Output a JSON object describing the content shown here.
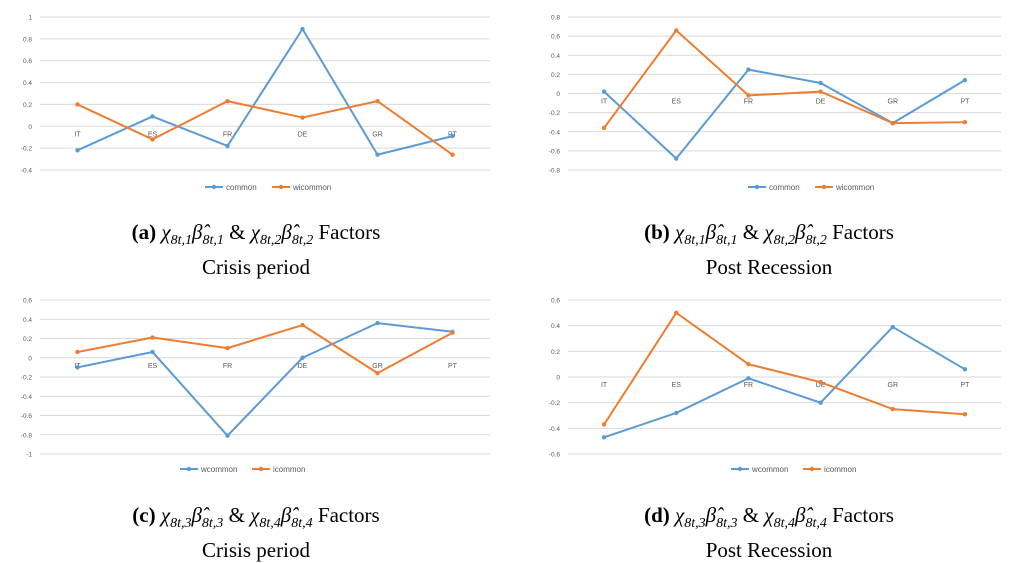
{
  "colors": {
    "series1": "#5b9bd5",
    "series2": "#ed7d31",
    "grid": "#d9d9d9",
    "text": "#595959"
  },
  "chart_data": [
    {
      "id": "a",
      "type": "line",
      "categories": [
        "IT",
        "ES",
        "FR",
        "DE",
        "GR",
        "PT"
      ],
      "ylim": [
        -0.4,
        1
      ],
      "yticks": [
        -0.4,
        -0.2,
        0,
        0.2,
        0.4,
        0.6,
        0.8,
        1
      ],
      "ytick_labels": [
        "-0.4",
        "-0.2",
        "0",
        "0.2",
        "0.4",
        "0.6",
        "0.8",
        "1"
      ],
      "grid": true,
      "legend": "bottom",
      "series": [
        {
          "name": "common",
          "values": [
            -0.22,
            0.09,
            -0.18,
            0.89,
            -0.26,
            -0.09
          ]
        },
        {
          "name": "wicommon",
          "values": [
            0.2,
            -0.12,
            0.23,
            0.08,
            0.23,
            -0.26
          ]
        }
      ]
    },
    {
      "id": "b",
      "type": "line",
      "categories": [
        "IT",
        "ES",
        "FR",
        "DE",
        "GR",
        "PT"
      ],
      "ylim": [
        -0.8,
        0.8
      ],
      "yticks": [
        -0.8,
        -0.6,
        -0.4,
        -0.2,
        0,
        0.2,
        0.4,
        0.6,
        0.8
      ],
      "ytick_labels": [
        "-0.8",
        "-0.6",
        "-0.4",
        "-0.2",
        "0",
        "0.2",
        "0.4",
        "0.6",
        "0.8"
      ],
      "grid": true,
      "legend": "bottom",
      "series": [
        {
          "name": "common",
          "values": [
            0.02,
            -0.68,
            0.25,
            0.11,
            -0.31,
            0.14
          ]
        },
        {
          "name": "wicommon",
          "values": [
            -0.36,
            0.66,
            -0.02,
            0.02,
            -0.31,
            -0.3
          ]
        }
      ]
    },
    {
      "id": "c",
      "type": "line",
      "categories": [
        "IT",
        "ES",
        "FR",
        "DE",
        "GR",
        "PT"
      ],
      "ylim": [
        -1,
        0.6
      ],
      "yticks": [
        -1,
        -0.8,
        -0.6,
        -0.4,
        -0.2,
        0,
        0.2,
        0.4,
        0.6
      ],
      "ytick_labels": [
        "-1",
        "-0.8",
        "-0.6",
        "-0.4",
        "-0.2",
        "0",
        "0.2",
        "0.4",
        "0.6"
      ],
      "grid": true,
      "legend": "bottom",
      "series": [
        {
          "name": "wcommon",
          "values": [
            -0.1,
            0.06,
            -0.81,
            0,
            0.36,
            0.27
          ]
        },
        {
          "name": "icommon",
          "values": [
            0.06,
            0.21,
            0.1,
            0.34,
            -0.16,
            0.26
          ]
        }
      ]
    },
    {
      "id": "d",
      "type": "line",
      "categories": [
        "IT",
        "ES",
        "FR",
        "DE",
        "GR",
        "PT"
      ],
      "ylim": [
        -0.6,
        0.6
      ],
      "yticks": [
        -0.6,
        -0.4,
        -0.2,
        0,
        0.2,
        0.4,
        0.6
      ],
      "ytick_labels": [
        "-0.6",
        "-0.4",
        "-0.2",
        "0",
        "0.2",
        "0.4",
        "0.6"
      ],
      "grid": true,
      "legend": "bottom",
      "series": [
        {
          "name": "wcommon",
          "values": [
            -0.47,
            -0.28,
            -0.01,
            -0.2,
            0.39,
            0.06
          ]
        },
        {
          "name": "icommon",
          "values": [
            -0.37,
            0.5,
            0.1,
            -0.04,
            -0.25,
            -0.29
          ]
        }
      ]
    }
  ],
  "captions": [
    {
      "tag": "(a)",
      "x1": "χ",
      "s1": "8t,1",
      "b1": "β̂",
      "t1": "8t,1",
      "amp": "&",
      "x2": "χ",
      "s2": "8t,2",
      "b2": "β̂",
      "t2": "8t,2",
      "tail": "Factors",
      "line2": "Crisis period"
    },
    {
      "tag": "(b)",
      "x1": "χ",
      "s1": "8t,1",
      "b1": "β̂",
      "t1": "8t,1",
      "amp": "&",
      "x2": "χ",
      "s2": "8t,2",
      "b2": "β̂",
      "t2": "8t,2",
      "tail": "Factors",
      "line2": "Post Recession"
    },
    {
      "tag": "(c)",
      "x1": "χ",
      "s1": "8t,3",
      "b1": "β̂",
      "t1": "8t,3",
      "amp": "&",
      "x2": "χ",
      "s2": "8t,4",
      "b2": "β̂",
      "t2": "8t,4",
      "tail": "Factors",
      "line2": "Crisis period"
    },
    {
      "tag": "(d)",
      "x1": "χ",
      "s1": "8t,3",
      "b1": "β̂",
      "t1": "8t,3",
      "amp": "&",
      "x2": "χ",
      "s2": "8t,4",
      "b2": "β̂",
      "t2": "8t,4",
      "tail": "Factors",
      "line2": "Post Recession"
    }
  ]
}
